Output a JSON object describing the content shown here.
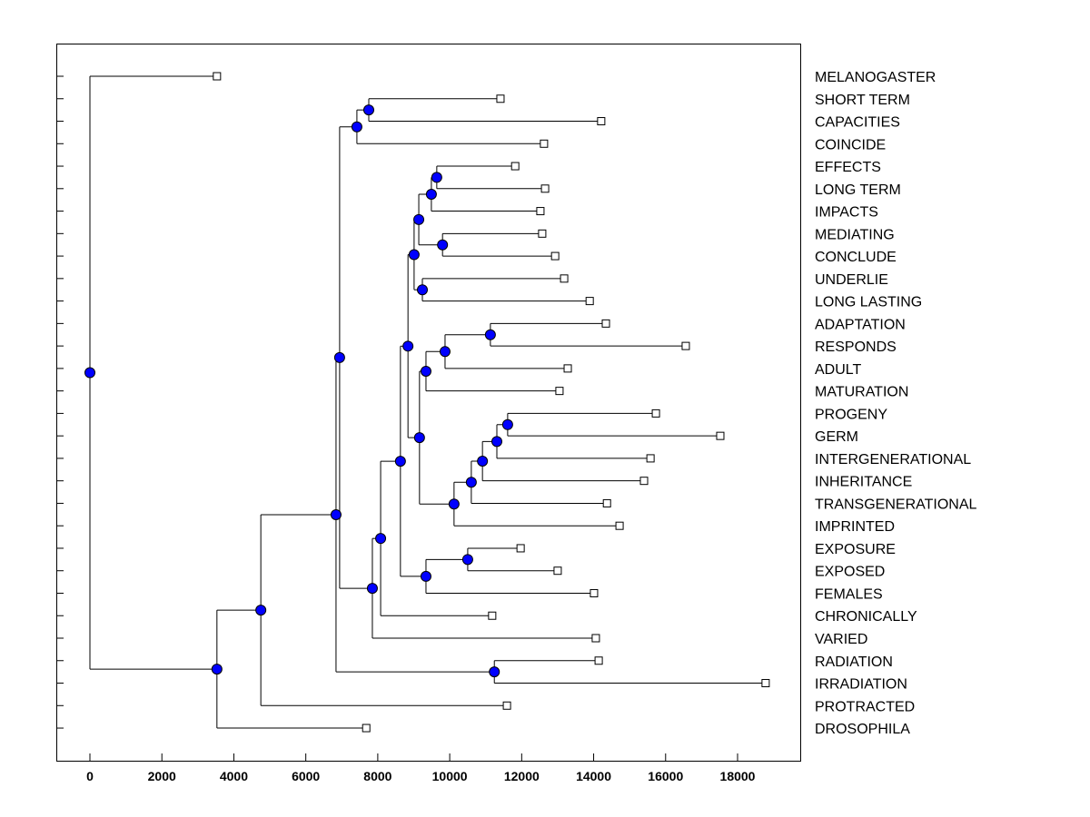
{
  "chart_data": {
    "type": "dendrogram",
    "title": "",
    "xlabel": "",
    "ylabel": "",
    "xlim": [
      -900,
      19800
    ],
    "xticks": [
      0,
      2000,
      4000,
      6000,
      8000,
      10000,
      12000,
      14000,
      16000,
      18000
    ],
    "node_color": "#0000ff",
    "tree": {
      "h": 0,
      "c": [
        {
          "label": "MELANOGASTER",
          "h": 3530
        },
        {
          "h": 3530,
          "c": [
            {
              "h": 4750,
              "c": [
                {
                  "h": 6840,
                  "c": [
                    {
                      "h": 6940,
                      "c": [
                        {
                          "h": 7420,
                          "c": [
                            {
                              "h": 7750,
                              "c": [
                                {
                                  "label": "SHORT TERM",
                                  "h": 11410
                                },
                                {
                                  "label": "CAPACITIES",
                                  "h": 14210
                                }
                              ]
                            },
                            {
                              "label": "COINCIDE",
                              "h": 12620
                            }
                          ]
                        },
                        {
                          "h": 7850,
                          "c": [
                            {
                              "h": 8080,
                              "c": [
                                {
                                  "h": 8630,
                                  "c": [
                                    {
                                      "h": 8840,
                                      "c": [
                                        {
                                          "h": 9010,
                                          "c": [
                                            {
                                              "h": 9140,
                                              "c": [
                                                {
                                                  "h": 9490,
                                                  "c": [
                                                    {
                                                      "h": 9640,
                                                      "c": [
                                                        {
                                                          "label": "EFFECTS",
                                                          "h": 11820
                                                        },
                                                        {
                                                          "label": "LONG TERM",
                                                          "h": 12650
                                                        }
                                                      ]
                                                    },
                                                    {
                                                      "label": "IMPACTS",
                                                      "h": 12520
                                                    }
                                                  ]
                                                },
                                                {
                                                  "h": 9800,
                                                  "c": [
                                                    {
                                                      "label": "MEDIATING",
                                                      "h": 12570
                                                    },
                                                    {
                                                      "label": "CONCLUDE",
                                                      "h": 12930
                                                    }
                                                  ]
                                                }
                                              ]
                                            },
                                            {
                                              "h": 9240,
                                              "c": [
                                                {
                                                  "label": "UNDERLIE",
                                                  "h": 13180
                                                },
                                                {
                                                  "label": "LONG LASTING",
                                                  "h": 13890
                                                }
                                              ]
                                            }
                                          ]
                                        },
                                        {
                                          "h": 9160,
                                          "c": [
                                            {
                                              "h": 9340,
                                              "c": [
                                                {
                                                  "h": 9870,
                                                  "c": [
                                                    {
                                                      "h": 11130,
                                                      "c": [
                                                        {
                                                          "label": "ADAPTATION",
                                                          "h": 14340
                                                        },
                                                        {
                                                          "label": "RESPONDS",
                                                          "h": 16560
                                                        }
                                                      ]
                                                    },
                                                    {
                                                      "label": "ADULT",
                                                      "h": 13280
                                                    }
                                                  ]
                                                },
                                                {
                                                  "label": "MATURATION",
                                                  "h": 13050
                                                }
                                              ]
                                            },
                                            {
                                              "h": 10120,
                                              "c": [
                                                {
                                                  "h": 10600,
                                                  "c": [
                                                    {
                                                      "h": 10910,
                                                      "c": [
                                                        {
                                                          "h": 11310,
                                                          "c": [
                                                            {
                                                              "h": 11610,
                                                              "c": [
                                                                {
                                                                  "label": "PROGENY",
                                                                  "h": 15730
                                                                },
                                                                {
                                                                  "label": "GERM",
                                                                  "h": 17520
                                                                }
                                                              ]
                                                            },
                                                            {
                                                              "label": "INTERGENERATIONAL",
                                                              "h": 15580
                                                            }
                                                          ]
                                                        },
                                                        {
                                                          "label": "INHERITANCE",
                                                          "h": 15400
                                                        }
                                                      ]
                                                    },
                                                    {
                                                      "label": "TRANSGENERATIONAL",
                                                      "h": 14370
                                                    }
                                                  ]
                                                },
                                                {
                                                  "label": "IMPRINTED",
                                                  "h": 14720
                                                }
                                              ]
                                            }
                                          ]
                                        }
                                      ]
                                    },
                                    {
                                      "h": 9340,
                                      "c": [
                                        {
                                          "h": 10500,
                                          "c": [
                                            {
                                              "label": "EXPOSURE",
                                              "h": 11970
                                            },
                                            {
                                              "label": "EXPOSED",
                                              "h": 13000
                                            }
                                          ]
                                        },
                                        {
                                          "label": "FEMALES",
                                          "h": 14010
                                        }
                                      ]
                                    }
                                  ]
                                },
                                {
                                  "label": "CHRONICALLY",
                                  "h": 11180
                                }
                              ]
                            },
                            {
                              "label": "VARIED",
                              "h": 14060
                            }
                          ]
                        }
                      ]
                    },
                    {
                      "h": 11240,
                      "c": [
                        {
                          "label": "RADIATION",
                          "h": 14140
                        },
                        {
                          "label": "IRRADIATION",
                          "h": 18780
                        }
                      ]
                    }
                  ]
                },
                {
                  "label": "PROTRACTED",
                  "h": 11590
                }
              ]
            },
            {
              "label": "DROSOPHILA",
              "h": 7680
            }
          ]
        }
      ]
    }
  }
}
